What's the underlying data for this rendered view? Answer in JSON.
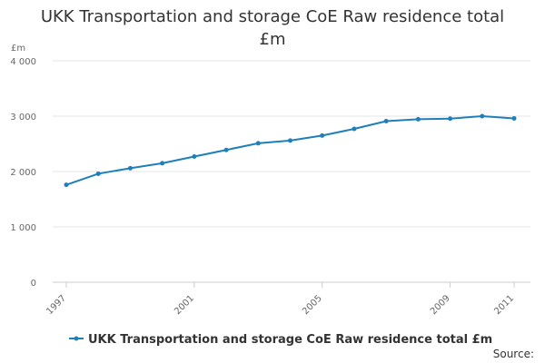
{
  "chart_data": {
    "type": "line",
    "title": "UKK Transportation and storage CoE Raw residence total £m",
    "ylabel": "£m",
    "xlabel": "",
    "x": [
      1997,
      1998,
      1999,
      2000,
      2001,
      2002,
      2003,
      2004,
      2005,
      2006,
      2007,
      2008,
      2009,
      2010,
      2011
    ],
    "x_tick_labels": [
      "1997",
      "2001",
      "2005",
      "2009",
      "2011"
    ],
    "y_ticks": [
      0,
      1000,
      2000,
      3000,
      4000
    ],
    "y_tick_labels": [
      "0",
      "1 000",
      "2 000",
      "3 000",
      "4 000"
    ],
    "ylim": [
      0,
      4000
    ],
    "grid": true,
    "legend_position": "bottom",
    "series": [
      {
        "name": "UKK Transportation and storage CoE Raw residence total £m",
        "color": "#1f7fba",
        "values": [
          1760,
          1960,
          2060,
          2150,
          2270,
          2390,
          2510,
          2560,
          2650,
          2770,
          2910,
          2945,
          2955,
          3000,
          2960
        ]
      }
    ],
    "source_label": "Source:"
  }
}
